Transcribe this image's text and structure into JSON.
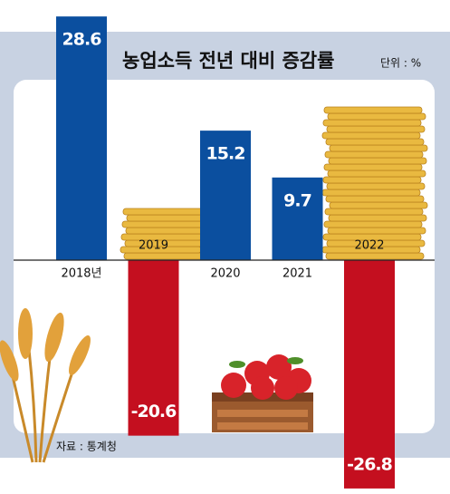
{
  "chart_data": {
    "type": "bar",
    "title": "농업소득 전년 대비 증감률",
    "unit": "단위 : %",
    "source": "자료 : 통계청",
    "categories": [
      "2018년",
      "2019",
      "2020",
      "2021",
      "2022"
    ],
    "values": [
      28.6,
      -20.6,
      15.2,
      9.7,
      -26.8
    ],
    "positive_color": "#0b4f9f",
    "negative_color": "#c40f1f"
  }
}
